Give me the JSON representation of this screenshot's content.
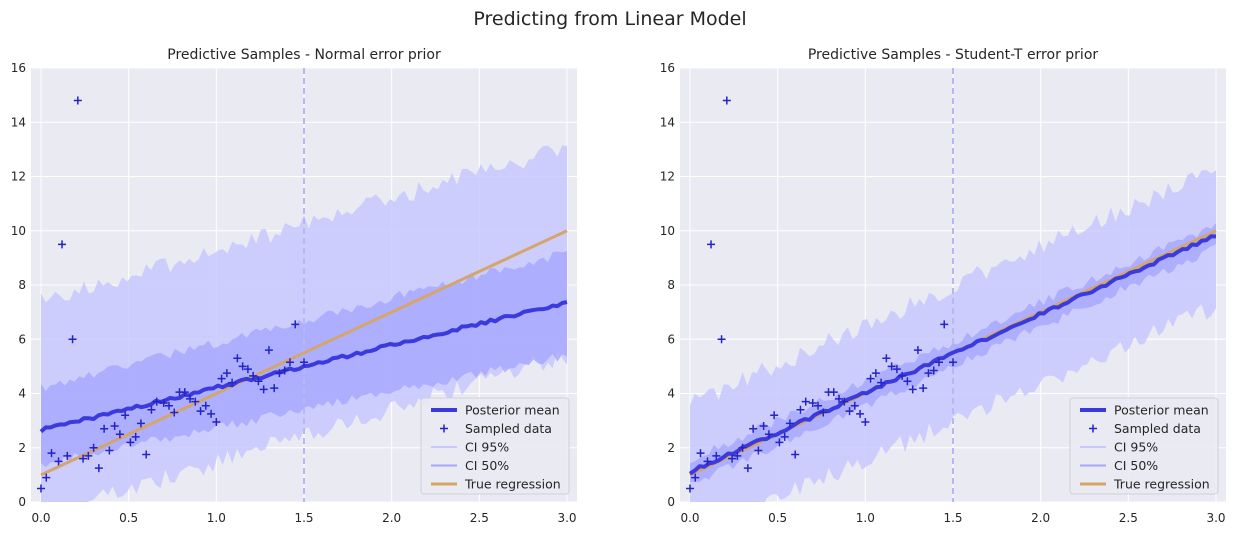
{
  "figure": {
    "title": "Predicting from Linear Model"
  },
  "chart_data": [
    {
      "type": "line",
      "title": "Predictive Samples - Normal error prior",
      "xlim": [
        0.0,
        3.0
      ],
      "ylim": [
        0,
        16
      ],
      "xticks": [
        "0.0",
        "0.5",
        "1.0",
        "1.5",
        "2.0",
        "2.5",
        "3.0"
      ],
      "yticks": [
        "0",
        "2",
        "4",
        "6",
        "8",
        "10",
        "12",
        "14",
        "16"
      ],
      "grid": true,
      "legend_position": "lower-right",
      "vline_x": 1.5,
      "sampled_data": [
        [
          0.0,
          0.5
        ],
        [
          0.03,
          0.9
        ],
        [
          0.06,
          1.8
        ],
        [
          0.1,
          1.5
        ],
        [
          0.12,
          9.5
        ],
        [
          0.15,
          1.7
        ],
        [
          0.18,
          6.0
        ],
        [
          0.21,
          14.8
        ],
        [
          0.24,
          1.6
        ],
        [
          0.27,
          1.7
        ],
        [
          0.3,
          2.0
        ],
        [
          0.33,
          1.25
        ],
        [
          0.36,
          2.7
        ],
        [
          0.39,
          1.9
        ],
        [
          0.42,
          2.8
        ],
        [
          0.45,
          2.5
        ],
        [
          0.48,
          3.2
        ],
        [
          0.51,
          2.2
        ],
        [
          0.54,
          2.4
        ],
        [
          0.57,
          2.9
        ],
        [
          0.6,
          1.75
        ],
        [
          0.63,
          3.4
        ],
        [
          0.66,
          3.7
        ],
        [
          0.7,
          3.65
        ],
        [
          0.73,
          3.55
        ],
        [
          0.76,
          3.3
        ],
        [
          0.79,
          4.05
        ],
        [
          0.82,
          4.05
        ],
        [
          0.85,
          3.8
        ],
        [
          0.88,
          3.7
        ],
        [
          0.91,
          3.35
        ],
        [
          0.94,
          3.55
        ],
        [
          0.97,
          3.25
        ],
        [
          1.0,
          2.95
        ],
        [
          1.03,
          4.55
        ],
        [
          1.06,
          4.75
        ],
        [
          1.09,
          4.4
        ],
        [
          1.12,
          5.3
        ],
        [
          1.15,
          5.0
        ],
        [
          1.18,
          4.9
        ],
        [
          1.21,
          4.65
        ],
        [
          1.24,
          4.45
        ],
        [
          1.27,
          4.15
        ],
        [
          1.3,
          5.6
        ],
        [
          1.33,
          4.2
        ],
        [
          1.36,
          4.75
        ],
        [
          1.39,
          4.85
        ],
        [
          1.42,
          5.15
        ],
        [
          1.45,
          6.55
        ],
        [
          1.5,
          5.15
        ]
      ],
      "ci95": {
        "lower_start": -0.5,
        "lower_end": 5.4,
        "upper_start": 7.4,
        "upper_end": 13.1
      },
      "ci50": {
        "lower_start": 1.4,
        "lower_end": 5.4,
        "upper_start": 4.2,
        "upper_end": 9.2
      },
      "posterior_mean": {
        "start": 2.65,
        "end": 7.35
      },
      "true_regression": {
        "intercept": 1.0,
        "slope": 3.0
      },
      "noise_seed": 7
    },
    {
      "type": "line",
      "title": "Predictive Samples - Student-T error prior",
      "xlim": [
        0.0,
        3.0
      ],
      "ylim": [
        0,
        16
      ],
      "xticks": [
        "0.0",
        "0.5",
        "1.0",
        "1.5",
        "2.0",
        "2.5",
        "3.0"
      ],
      "yticks": [
        "0",
        "2",
        "4",
        "6",
        "8",
        "10",
        "12",
        "14",
        "16"
      ],
      "grid": true,
      "legend_position": "lower-right",
      "vline_x": 1.5,
      "sampled_data": [
        [
          0.0,
          0.5
        ],
        [
          0.03,
          0.9
        ],
        [
          0.06,
          1.8
        ],
        [
          0.1,
          1.5
        ],
        [
          0.12,
          9.5
        ],
        [
          0.15,
          1.7
        ],
        [
          0.18,
          6.0
        ],
        [
          0.21,
          14.8
        ],
        [
          0.24,
          1.6
        ],
        [
          0.27,
          1.7
        ],
        [
          0.3,
          2.0
        ],
        [
          0.33,
          1.25
        ],
        [
          0.36,
          2.7
        ],
        [
          0.39,
          1.9
        ],
        [
          0.42,
          2.8
        ],
        [
          0.45,
          2.5
        ],
        [
          0.48,
          3.2
        ],
        [
          0.51,
          2.2
        ],
        [
          0.54,
          2.4
        ],
        [
          0.57,
          2.9
        ],
        [
          0.6,
          1.75
        ],
        [
          0.63,
          3.4
        ],
        [
          0.66,
          3.7
        ],
        [
          0.7,
          3.65
        ],
        [
          0.73,
          3.55
        ],
        [
          0.76,
          3.3
        ],
        [
          0.79,
          4.05
        ],
        [
          0.82,
          4.05
        ],
        [
          0.85,
          3.8
        ],
        [
          0.88,
          3.7
        ],
        [
          0.91,
          3.35
        ],
        [
          0.94,
          3.55
        ],
        [
          0.97,
          3.25
        ],
        [
          1.0,
          2.95
        ],
        [
          1.03,
          4.55
        ],
        [
          1.06,
          4.75
        ],
        [
          1.09,
          4.4
        ],
        [
          1.12,
          5.3
        ],
        [
          1.15,
          5.0
        ],
        [
          1.18,
          4.9
        ],
        [
          1.21,
          4.65
        ],
        [
          1.24,
          4.45
        ],
        [
          1.27,
          4.15
        ],
        [
          1.3,
          5.6
        ],
        [
          1.33,
          4.2
        ],
        [
          1.36,
          4.75
        ],
        [
          1.39,
          4.85
        ],
        [
          1.42,
          5.15
        ],
        [
          1.45,
          6.55
        ],
        [
          1.5,
          5.15
        ]
      ],
      "ci95": {
        "lower_start": -1.3,
        "lower_end": 7.2,
        "upper_start": 3.6,
        "upper_end": 12.3
      },
      "ci50": {
        "lower_start": 0.65,
        "lower_end": 9.35,
        "upper_start": 1.55,
        "upper_end": 10.25
      },
      "posterior_mean": {
        "start": 1.1,
        "end": 9.85
      },
      "true_regression": {
        "intercept": 1.0,
        "slope": 3.0
      },
      "noise_seed": 13
    }
  ],
  "legend": {
    "items": [
      {
        "key": "posterior_mean",
        "label": "Posterior mean"
      },
      {
        "key": "sampled_data",
        "label": "Sampled data"
      },
      {
        "key": "ci95",
        "label": "CI 95%"
      },
      {
        "key": "ci50",
        "label": "CI 50%"
      },
      {
        "key": "true_regression",
        "label": "True regression"
      }
    ]
  },
  "colors": {
    "axes_bg": "#eaeaf2",
    "grid": "#ffffff",
    "ci95": "#c8c8ff",
    "ci50": "#a6a6ff",
    "posterior_mean": "#3a3adf",
    "sampled_data": "#2323c8",
    "true_regression": "#d4a66a",
    "vline": "#b7b7f5"
  }
}
